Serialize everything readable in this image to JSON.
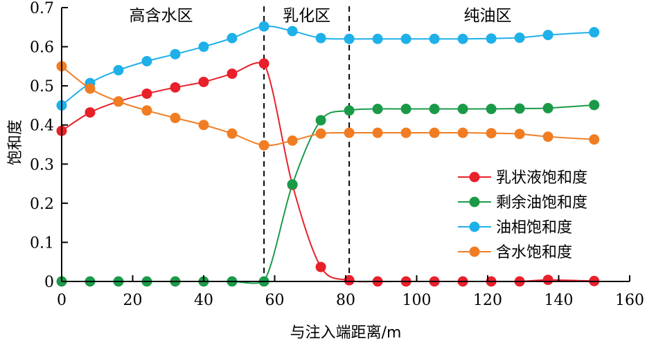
{
  "chart_data": {
    "type": "line",
    "xlabel": "与注入端距离/m",
    "ylabel": "饱和度",
    "xlim": [
      0,
      160
    ],
    "ylim": [
      0,
      0.7
    ],
    "x_ticks": [
      "0",
      "20",
      "40",
      "60",
      "80",
      "100",
      "120",
      "140",
      "160"
    ],
    "y_ticks": [
      "0",
      "0.1",
      "0.2",
      "0.3",
      "0.4",
      "0.5",
      "0.6",
      "0.7"
    ],
    "regions": [
      {
        "label": "高含水区",
        "x_center": 28
      },
      {
        "label": "乳化区",
        "x_center": 69
      },
      {
        "label": "纯油区",
        "x_center": 120
      }
    ],
    "dividers": [
      57,
      81
    ],
    "x": [
      0,
      8,
      16,
      24,
      32,
      40,
      48,
      57,
      65,
      73,
      81,
      89,
      97,
      105,
      113,
      121,
      129,
      137,
      150
    ],
    "series": [
      {
        "name": "乳状液饱和度",
        "color": "#e8202a",
        "values": [
          0.385,
          0.432,
          0.46,
          0.48,
          0.496,
          0.51,
          0.531,
          0.557,
          0.247,
          0.037,
          0.003,
          0.0,
          0.0,
          0.0,
          0.0,
          0.0,
          0.0,
          0.004,
          0.001
        ]
      },
      {
        "name": "剩余油饱和度",
        "color": "#1a9a48",
        "values": [
          0.0,
          0.0,
          0.0,
          0.0,
          0.0,
          0.0,
          0.0,
          0.0,
          0.248,
          0.412,
          0.437,
          0.441,
          0.441,
          0.441,
          0.441,
          0.441,
          0.442,
          0.443,
          0.451
        ]
      },
      {
        "name": "油相饱和度",
        "color": "#1eb0e8",
        "values": [
          0.45,
          0.507,
          0.54,
          0.563,
          0.581,
          0.6,
          0.622,
          0.652,
          0.64,
          0.622,
          0.62,
          0.62,
          0.62,
          0.62,
          0.62,
          0.621,
          0.623,
          0.63,
          0.637
        ]
      },
      {
        "name": "含水饱和度",
        "color": "#f07d23",
        "values": [
          0.55,
          0.493,
          0.46,
          0.437,
          0.418,
          0.4,
          0.378,
          0.348,
          0.36,
          0.378,
          0.38,
          0.38,
          0.38,
          0.38,
          0.38,
          0.379,
          0.377,
          0.37,
          0.363
        ]
      }
    ],
    "legend": "right-middle",
    "grid": false
  }
}
